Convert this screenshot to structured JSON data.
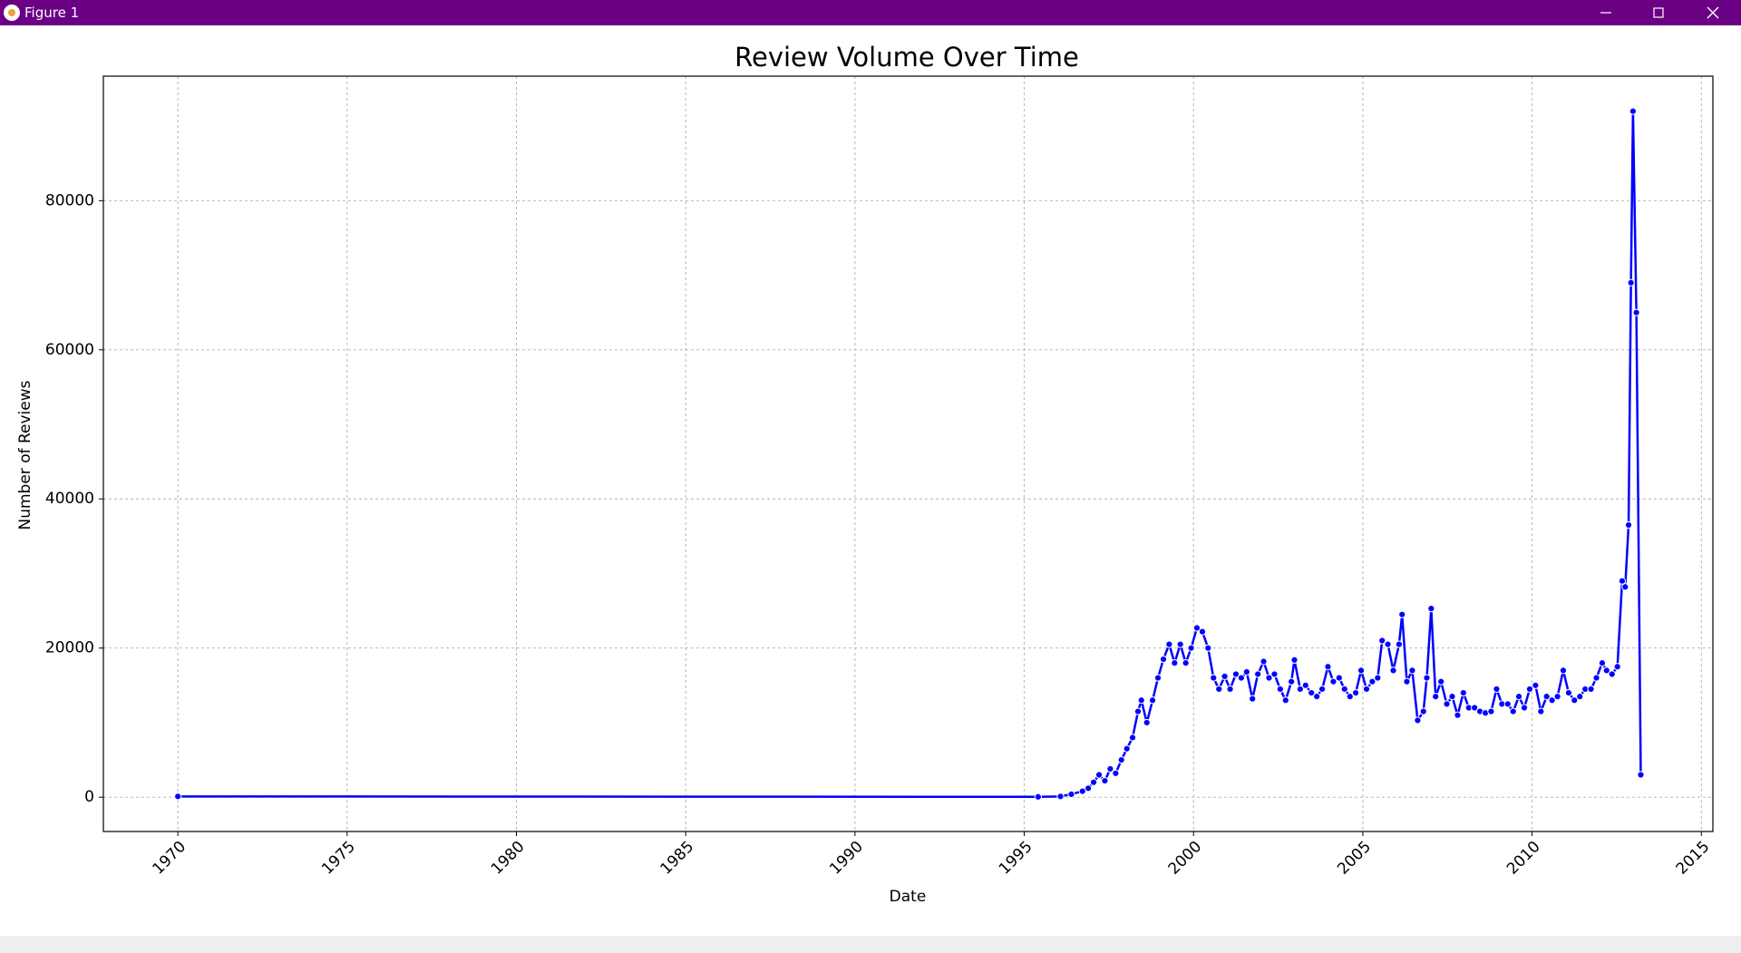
{
  "window": {
    "title": "Figure 1"
  },
  "chart_data": {
    "type": "line",
    "title": "Review Volume Over Time",
    "x_label": "Date",
    "y_label": "Number of Reviews",
    "color": "blue",
    "grid": true,
    "markers": true,
    "x": [
      1970.0,
      1995.41,
      1996.07,
      1996.39,
      1996.72,
      1996.89,
      1997.05,
      1997.21,
      1997.38,
      1997.54,
      1997.7,
      1997.87,
      1998.03,
      1998.2,
      1998.36,
      1998.46,
      1998.62,
      1998.79,
      1998.95,
      1999.11,
      1999.28,
      1999.44,
      1999.61,
      1999.77,
      1999.93,
      2000.1,
      2000.26,
      2000.43,
      2000.59,
      2000.75,
      2000.92,
      2001.08,
      2001.25,
      2001.41,
      2001.57,
      2001.74,
      2001.9,
      2002.07,
      2002.23,
      2002.39,
      2002.56,
      2002.72,
      2002.89,
      2002.98,
      2003.15,
      2003.31,
      2003.48,
      2003.64,
      2003.8,
      2003.97,
      2004.13,
      2004.3,
      2004.46,
      2004.62,
      2004.79,
      2004.95,
      2005.11,
      2005.28,
      2005.44,
      2005.57,
      2005.74,
      2005.9,
      2006.07,
      2006.16,
      2006.3,
      2006.46,
      2006.62,
      2006.79,
      2006.89,
      2007.02,
      2007.15,
      2007.31,
      2007.48,
      2007.64,
      2007.8,
      2007.97,
      2008.13,
      2008.3,
      2008.46,
      2008.62,
      2008.79,
      2008.95,
      2009.11,
      2009.28,
      2009.44,
      2009.61,
      2009.77,
      2009.93,
      2010.1,
      2010.26,
      2010.43,
      2010.59,
      2010.75,
      2010.92,
      2011.08,
      2011.25,
      2011.41,
      2011.57,
      2011.74,
      2011.9,
      2012.07,
      2012.2,
      2012.36,
      2012.52,
      2012.66,
      2012.75,
      2012.85,
      2012.92,
      2012.98,
      2013.08,
      2013.21
    ],
    "values": [
      100,
      50,
      100,
      400,
      800,
      1200,
      2000,
      3000,
      2200,
      3800,
      3200,
      5000,
      6500,
      8000,
      11500,
      13000,
      10000,
      13000,
      16000,
      18500,
      20500,
      18000,
      20500,
      18000,
      20000,
      22700,
      22200,
      20000,
      16000,
      14500,
      16200,
      14500,
      16500,
      16000,
      16800,
      13200,
      16500,
      18200,
      16000,
      16500,
      14500,
      13000,
      15500,
      18400,
      14500,
      15000,
      14000,
      13500,
      14500,
      17500,
      15500,
      16000,
      14500,
      13500,
      14000,
      17000,
      14500,
      15500,
      16000,
      21000,
      20500,
      17000,
      20500,
      24500,
      15500,
      17000,
      10300,
      11500,
      16000,
      25300,
      13500,
      15500,
      12500,
      13500,
      11000,
      14000,
      12000,
      12000,
      11500,
      11300,
      11500,
      14500,
      12500,
      12500,
      11500,
      13500,
      12000,
      14500,
      15000,
      11500,
      13500,
      13000,
      13500,
      17000,
      14000,
      13000,
      13500,
      14500,
      14500,
      16000,
      18000,
      17000,
      16500,
      17500,
      29000,
      28200,
      36500,
      69000,
      92000,
      65000,
      3000
    ],
    "xlim": [
      1967.8,
      2015.34
    ],
    "ylim": [
      -4600,
      96700
    ],
    "xticks": [
      1970,
      1975,
      1980,
      1985,
      1990,
      1995,
      2000,
      2005,
      2010,
      2015
    ],
    "yticks": [
      0,
      20000,
      40000,
      60000,
      80000
    ]
  }
}
